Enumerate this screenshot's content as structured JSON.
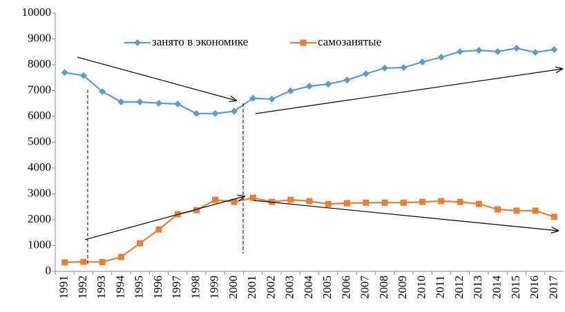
{
  "chart_data": {
    "type": "line",
    "categories": [
      "1991",
      "1992",
      "1993",
      "1994",
      "1995",
      "1996",
      "1997",
      "1998",
      "1999",
      "2000",
      "2001",
      "2002",
      "2003",
      "2004",
      "2005",
      "2006",
      "2007",
      "2008",
      "2009",
      "2010",
      "2011",
      "2012",
      "2013",
      "2014",
      "2015",
      "2016",
      "2017"
    ],
    "series": [
      {
        "name": "занято в экономике",
        "color": "#5b9bd5",
        "marker": "diamond",
        "values": [
          7700,
          7580,
          6960,
          6560,
          6560,
          6510,
          6480,
          6110,
          6110,
          6200,
          6700,
          6670,
          6990,
          7170,
          7250,
          7410,
          7650,
          7870,
          7890,
          8110,
          8290,
          8510,
          8560,
          8510,
          8640,
          8480,
          8590
        ]
      },
      {
        "name": "самозанятые",
        "color": "#ed7d31",
        "marker": "square",
        "values": [
          350,
          370,
          360,
          560,
          1090,
          1620,
          2210,
          2370,
          2770,
          2690,
          2850,
          2690,
          2770,
          2720,
          2610,
          2640,
          2660,
          2660,
          2660,
          2690,
          2720,
          2690,
          2610,
          2400,
          2350,
          2350,
          2110
        ]
      }
    ],
    "ylim": [
      0,
      10000
    ],
    "yticks": [
      0,
      1000,
      2000,
      3000,
      4000,
      5000,
      6000,
      7000,
      8000,
      9000,
      10000
    ],
    "grid": false
  }
}
